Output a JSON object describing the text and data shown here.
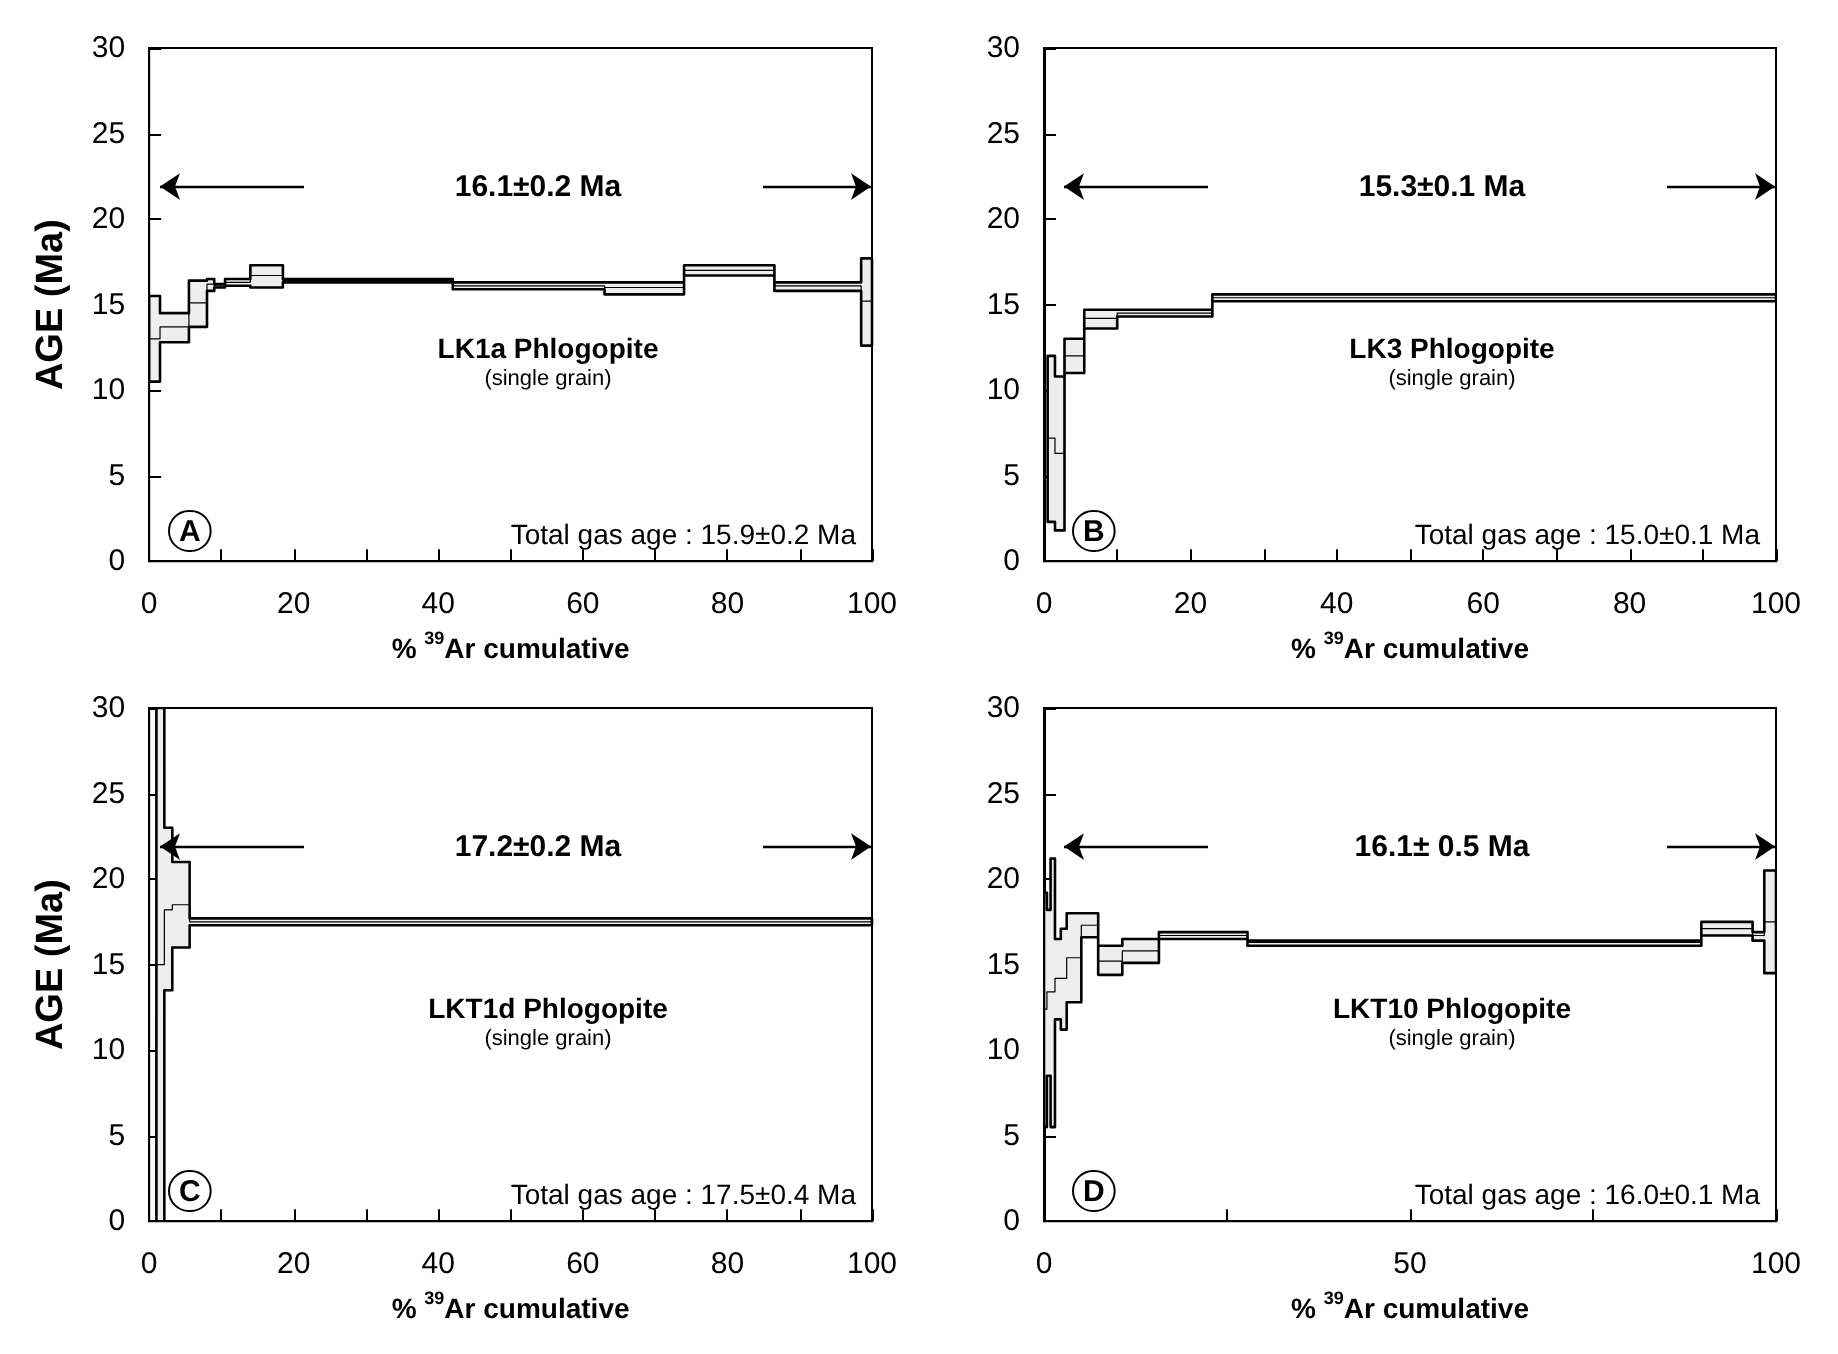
{
  "chart_data": [
    {
      "type": "step",
      "title": "LK1a Phlogopite",
      "subtitle": "(single grain)",
      "xlabel": "% $^{39}$Ar cumulative",
      "ylabel": "AGE (Ma)",
      "annotations": [
        "A",
        "Total gas age : 15.9±0.2 Ma",
        "16.1±0.2 Ma"
      ],
      "x": [
        0,
        1.5,
        5.5,
        8,
        9,
        10.5,
        14,
        18.5,
        42,
        63,
        74,
        86.5,
        98.5,
        100
      ],
      "series": [
        {
          "color": "#000000",
          "values": [
            13.0,
            13.7,
            15.1,
            16.2,
            16.1,
            16.3,
            16.7,
            16.4,
            16.1,
            16.0,
            17.0,
            16.1,
            15.2,
            15.2
          ],
          "lower": [
            10.5,
            12.8,
            13.7,
            15.8,
            16.0,
            16.1,
            16.0,
            16.3,
            15.9,
            15.6,
            16.7,
            15.8,
            12.6,
            12.6
          ],
          "upper": [
            15.5,
            14.5,
            16.4,
            16.5,
            16.2,
            16.5,
            17.3,
            16.5,
            16.3,
            16.3,
            17.3,
            16.3,
            17.7,
            17.7
          ]
        }
      ],
      "xlim": [
        0,
        100
      ],
      "ylim": [
        0,
        30
      ],
      "xticks": [
        0,
        {
          "value": 10,
          "label": null
        },
        20,
        {
          "value": 30,
          "label": null
        },
        40,
        {
          "value": 50,
          "label": null
        },
        60,
        {
          "value": 70,
          "label": null
        },
        80,
        {
          "value": 90,
          "label": null
        },
        100
      ],
      "yticks": [
        0,
        5,
        10,
        15,
        20,
        25,
        30
      ],
      "grid": false,
      "marker": "none"
    },
    {
      "type": "step",
      "title": "LK3 Phlogopite",
      "subtitle": "(single grain)",
      "xlabel": "% $^{39}$Ar cumulative",
      "annotations": [
        "B",
        "Total gas age : 15.0±0.1 Ma",
        "15.3±0.1 Ma"
      ],
      "x": [
        0.5,
        1.5,
        2.8,
        5.5,
        10,
        23,
        100
      ],
      "series": [
        {
          "color": "#000000",
          "values": [
            7.2,
            6.3,
            12.0,
            14.2,
            14.5,
            15.4,
            15.4
          ],
          "lower": [
            2.3,
            1.8,
            11.0,
            13.6,
            14.3,
            15.2,
            15.2
          ],
          "upper": [
            12.0,
            10.8,
            13.0,
            14.7,
            14.7,
            15.6,
            15.6
          ]
        }
      ],
      "xlim": [
        0,
        100
      ],
      "ylim": [
        0,
        30
      ],
      "xticks": [
        0,
        {
          "value": 10,
          "label": null
        },
        20,
        {
          "value": 30,
          "label": null
        },
        40,
        {
          "value": 50,
          "label": null
        },
        60,
        {
          "value": 70,
          "label": null
        },
        80,
        {
          "value": 90,
          "label": null
        },
        100
      ],
      "yticks": [
        0,
        5,
        10,
        15,
        20,
        25,
        30
      ],
      "grid": false,
      "marker": "none"
    },
    {
      "type": "step",
      "title": "LKT1d Phlogopite",
      "subtitle": "(single grain)",
      "xlabel": "% $^{39}$Ar cumulative",
      "ylabel": "AGE (Ma)",
      "annotations": [
        "C",
        "Total gas age : 17.5±0.4 Ma",
        "17.2±0.2 Ma"
      ],
      "x": [
        1,
        2.1,
        3.2,
        5.6,
        100
      ],
      "series": [
        {
          "color": "#000000",
          "values": [
            15.0,
            18.2,
            18.5,
            17.5,
            17.5
          ],
          "lower": [
            0,
            13.5,
            16.0,
            17.3,
            17.3
          ],
          "upper": [
            30,
            23.0,
            21.0,
            17.7,
            17.7
          ]
        }
      ],
      "xlim": [
        0,
        100
      ],
      "ylim": [
        0,
        30
      ],
      "xticks": [
        0,
        {
          "value": 10,
          "label": null
        },
        20,
        {
          "value": 30,
          "label": null
        },
        40,
        {
          "value": 50,
          "label": null
        },
        60,
        {
          "value": 70,
          "label": null
        },
        80,
        {
          "value": 90,
          "label": null
        },
        100
      ],
      "yticks": [
        0,
        5,
        10,
        15,
        20,
        25,
        30
      ],
      "grid": false,
      "marker": "none"
    },
    {
      "type": "step",
      "title": "LKT10 Phlogopite",
      "subtitle": "(single grain)",
      "xlabel": "% $^{39}$Ar cumulative",
      "annotations": [
        "D",
        "Total gas age : 16.0±0.1 Ma",
        "16.1± 0.5 Ma"
      ],
      "x": [
        0,
        0.4,
        0.9,
        1.5,
        2.3,
        3.1,
        5.1,
        7.4,
        10.7,
        15.7,
        27.8,
        89.8,
        96.8,
        98.4,
        100
      ],
      "series": [
        {
          "color": "#000000",
          "values": [
            12.4,
            13.4,
            13.4,
            14.2,
            14.2,
            15.4,
            17.3,
            15.2,
            15.8,
            16.7,
            16.3,
            17.1,
            16.7,
            17.5,
            17.5
          ],
          "lower": [
            5.5,
            8.5,
            5.5,
            11.8,
            11.2,
            12.8,
            16.6,
            14.4,
            15.1,
            16.5,
            16.1,
            16.7,
            16.4,
            14.5,
            14.5
          ],
          "upper": [
            19.2,
            18.2,
            21.2,
            16.5,
            17.1,
            18.0,
            18.0,
            16.1,
            16.5,
            16.9,
            16.4,
            17.5,
            16.9,
            20.5,
            20.5
          ]
        }
      ],
      "xlim": [
        0,
        100
      ],
      "ylim": [
        0,
        30
      ],
      "xticks": [
        0,
        {
          "value": 25,
          "label": null
        },
        50,
        {
          "value": 75,
          "label": null
        },
        100
      ],
      "yticks": [
        0,
        5,
        10,
        15,
        20,
        25,
        30
      ],
      "grid": false,
      "marker": "none"
    }
  ]
}
